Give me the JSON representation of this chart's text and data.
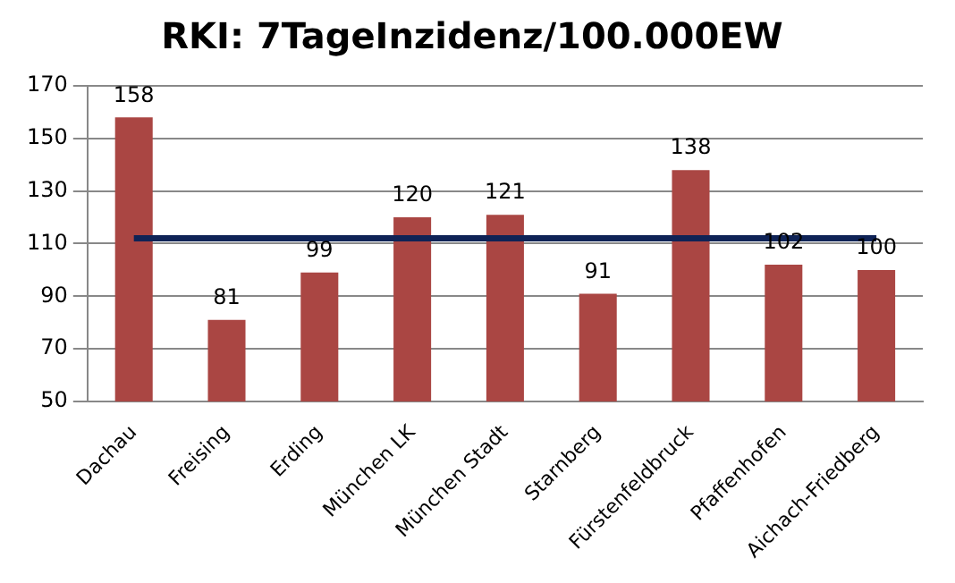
{
  "chart_data": {
    "type": "bar",
    "title": "RKI: 7TageInzidenz/100.000EW",
    "categories": [
      "Dachau",
      "Freising",
      "Erding",
      "München LK",
      "München Stadt",
      "Starnberg",
      "Fürstenfeldbruck",
      "Pfaffenhofen",
      "Aichach-Friedberg"
    ],
    "series": [
      {
        "color": "#aa4643",
        "values": [
          158,
          81,
          99,
          120,
          121,
          91,
          138,
          102,
          100
        ],
        "value_labels": [
          "158",
          "81",
          "99",
          "120",
          "121",
          "91",
          "138",
          "102",
          "100"
        ]
      },
      {
        "type": "line",
        "color": "#0f2356",
        "values": [
          112,
          112,
          112,
          112,
          112,
          112,
          112,
          112,
          112
        ]
      }
    ],
    "ylim": [
      50,
      170
    ],
    "yticks": [
      50,
      70,
      90,
      110,
      130,
      150,
      170
    ],
    "grid": "y",
    "legend": false,
    "marker": "none",
    "line_style": "solid"
  }
}
